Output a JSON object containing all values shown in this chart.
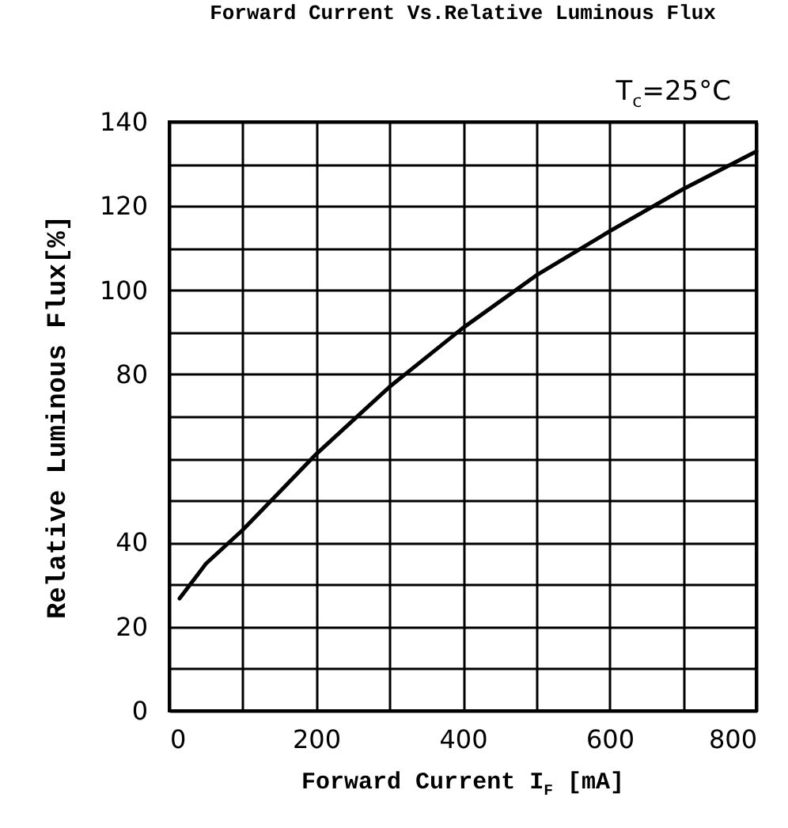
{
  "chart_data": {
    "type": "line",
    "title": "Forward Current Vs.Relative Luminous Flux",
    "xlabel": "Forward Current I$_{F}$ [mA]",
    "ylabel": "Relative Luminous Flux[%]",
    "annotations": [
      "T$_{c}$=25°C"
    ],
    "x": [
      14,
      50,
      100,
      150,
      200,
      300,
      400,
      500,
      600,
      700,
      800
    ],
    "series": [
      {
        "color": "#000000",
        "values": [
          26.7,
          35,
          43,
          52,
          61,
          77,
          91,
          103.5,
          114,
          124,
          133
        ]
      }
    ],
    "xlim": [
      0,
      800
    ],
    "ylim": [
      0,
      140
    ],
    "xticks": [
      0,
      {
        "value": 100,
        "label": null
      },
      200,
      {
        "value": 300,
        "label": null
      },
      400,
      {
        "value": 500,
        "label": null
      },
      600,
      {
        "value": 700,
        "label": null
      },
      800
    ],
    "yticks": [
      0,
      {
        "value": 10,
        "label": null
      },
      20,
      {
        "value": 30,
        "label": null
      },
      40,
      {
        "value": 50,
        "label": null
      },
      {
        "value": 60,
        "label": null
      },
      {
        "value": 70,
        "label": null
      },
      80,
      {
        "value": 90,
        "label": null
      },
      100,
      {
        "value": 110,
        "label": null
      },
      120,
      {
        "value": 130,
        "label": null
      },
      140
    ],
    "grid": true,
    "legend": false,
    "marker": "none",
    "line_style": "solid"
  }
}
